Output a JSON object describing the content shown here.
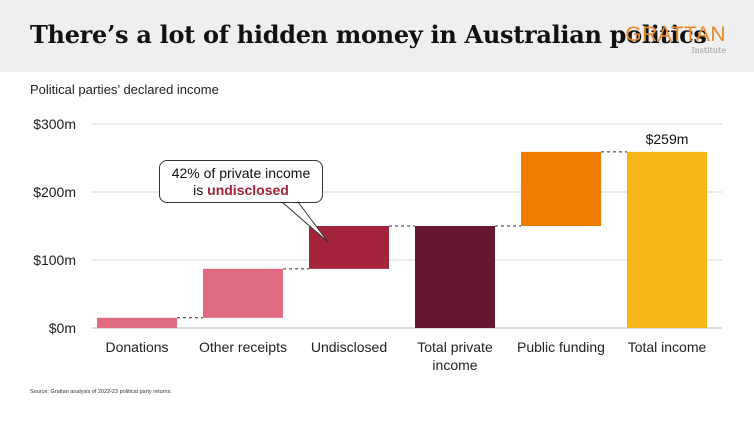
{
  "header": {
    "title": "There’s a lot of hidden money in Australian politics",
    "logo_word": "GRATTAN",
    "logo_sub": "Institute"
  },
  "subtitle": "Political parties’ declared income",
  "source": "Source: Grattan analysis of 2022-23 political party returns.",
  "annotation": {
    "line1": "42% of private income",
    "line2_prefix": "is ",
    "line2_highlight": "undisclosed"
  },
  "colors": {
    "donations": "#e06b81",
    "other_receipts": "#e06b81",
    "undisclosed": "#a3243b",
    "total_private": "#671634",
    "public_funding": "#f07d00",
    "total_income": "#f5b715",
    "annotation_highlight": "#a3243b"
  },
  "chart_data": {
    "type": "bar",
    "subtype": "waterfall",
    "categories": [
      "Donations",
      "Other receipts",
      "Undisclosed",
      "Total private income",
      "Public funding",
      "Total income"
    ],
    "category_label_lines": [
      [
        "Donations"
      ],
      [
        "Other receipts"
      ],
      [
        "Undisclosed"
      ],
      [
        "Total private",
        "income"
      ],
      [
        "Public funding"
      ],
      [
        "Total income"
      ]
    ],
    "bars": [
      {
        "name": "Donations",
        "start": 0,
        "end": 15,
        "color": "#e06b81"
      },
      {
        "name": "Other receipts",
        "start": 15,
        "end": 87,
        "color": "#e06b81"
      },
      {
        "name": "Undisclosed",
        "start": 87,
        "end": 150,
        "color": "#a3243b"
      },
      {
        "name": "Total private income",
        "start": 0,
        "end": 150,
        "color": "#671634"
      },
      {
        "name": "Public funding",
        "start": 150,
        "end": 259,
        "color": "#f07d00"
      },
      {
        "name": "Total income",
        "start": 0,
        "end": 259,
        "color": "#f5b715"
      }
    ],
    "y_ticks": [
      0,
      100,
      200,
      300
    ],
    "y_tick_labels": [
      "$0m",
      "$100m",
      "$200m",
      "$300m"
    ],
    "ylim": [
      0,
      300
    ],
    "data_labels": [
      {
        "category": "Total income",
        "text": "$259m"
      }
    ],
    "grid": true
  }
}
